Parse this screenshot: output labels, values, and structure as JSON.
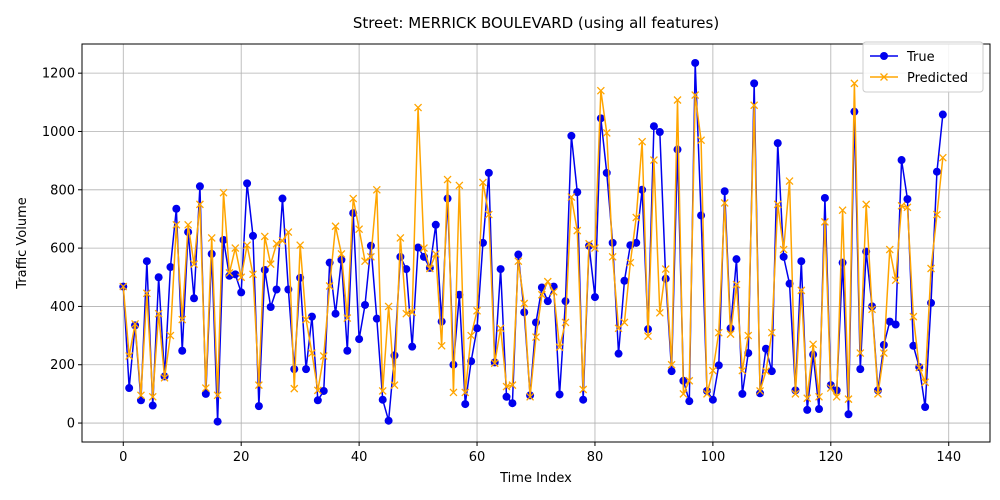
{
  "chart_data": {
    "type": "line",
    "title": "Street: MERRICK BOULEVARD (using all features)",
    "xlabel": "Time Index",
    "ylabel": "Traffic Volume",
    "xlim": [
      -7,
      147
    ],
    "ylim": [
      -65,
      1300
    ],
    "xticks": [
      0,
      20,
      40,
      60,
      80,
      100,
      120,
      140
    ],
    "yticks": [
      0,
      200,
      400,
      600,
      800,
      1000,
      1200
    ],
    "grid": true,
    "legend_position": "top-right",
    "series": [
      {
        "name": "True",
        "color": "#0000ee",
        "marker": "circle",
        "values": [
          468,
          120,
          335,
          78,
          555,
          60,
          500,
          160,
          535,
          735,
          248,
          655,
          428,
          812,
          100,
          580,
          5,
          628,
          505,
          510,
          448,
          822,
          642,
          58,
          525,
          398,
          458,
          770,
          458,
          185,
          498,
          185,
          365,
          78,
          110,
          550,
          375,
          560,
          248,
          720,
          288,
          405,
          608,
          358,
          80,
          8,
          232,
          570,
          528,
          262,
          602,
          570,
          532,
          680,
          348,
          770,
          200,
          440,
          65,
          212,
          325,
          618,
          858,
          208,
          528,
          90,
          68,
          578,
          380,
          95,
          345,
          465,
          418,
          468,
          98,
          418,
          985,
          792,
          80,
          608,
          432,
          1045,
          858,
          618,
          238,
          488,
          610,
          618,
          800,
          322,
          1018,
          998,
          495,
          178,
          938,
          145,
          75,
          1235,
          712,
          110,
          80,
          198,
          795,
          325,
          562,
          100,
          240,
          1165,
          102,
          255,
          178,
          960,
          570,
          478,
          112,
          555,
          45,
          235,
          48,
          772,
          130,
          112,
          550,
          30,
          1068,
          185,
          588,
          400,
          112,
          268,
          348,
          338,
          902,
          768,
          265,
          192,
          55,
          412,
          862,
          1058
        ]
      },
      {
        "name": "Predicted",
        "color": "#ffa500",
        "marker": "x",
        "values": [
          468,
          230,
          340,
          95,
          445,
          90,
          375,
          155,
          300,
          680,
          355,
          680,
          545,
          750,
          120,
          635,
          95,
          790,
          515,
          600,
          500,
          610,
          510,
          130,
          640,
          545,
          615,
          625,
          655,
          118,
          610,
          355,
          240,
          112,
          230,
          470,
          675,
          580,
          360,
          770,
          665,
          555,
          570,
          800,
          110,
          400,
          130,
          635,
          375,
          380,
          1082,
          600,
          530,
          580,
          265,
          835,
          105,
          815,
          105,
          300,
          385,
          825,
          715,
          205,
          325,
          125,
          130,
          555,
          410,
          90,
          295,
          440,
          485,
          450,
          260,
          345,
          775,
          660,
          115,
          615,
          600,
          1140,
          995,
          570,
          325,
          345,
          550,
          705,
          965,
          298,
          902,
          378,
          528,
          200,
          1108,
          100,
          145,
          1125,
          970,
          100,
          180,
          310,
          755,
          305,
          475,
          180,
          300,
          1090,
          110,
          178,
          310,
          750,
          595,
          830,
          100,
          455,
          85,
          270,
          90,
          690,
          120,
          90,
          730,
          82,
          1165,
          240,
          750,
          390,
          100,
          240,
          595,
          490,
          745,
          740,
          365,
          190,
          140,
          530,
          715,
          910
        ]
      }
    ]
  }
}
